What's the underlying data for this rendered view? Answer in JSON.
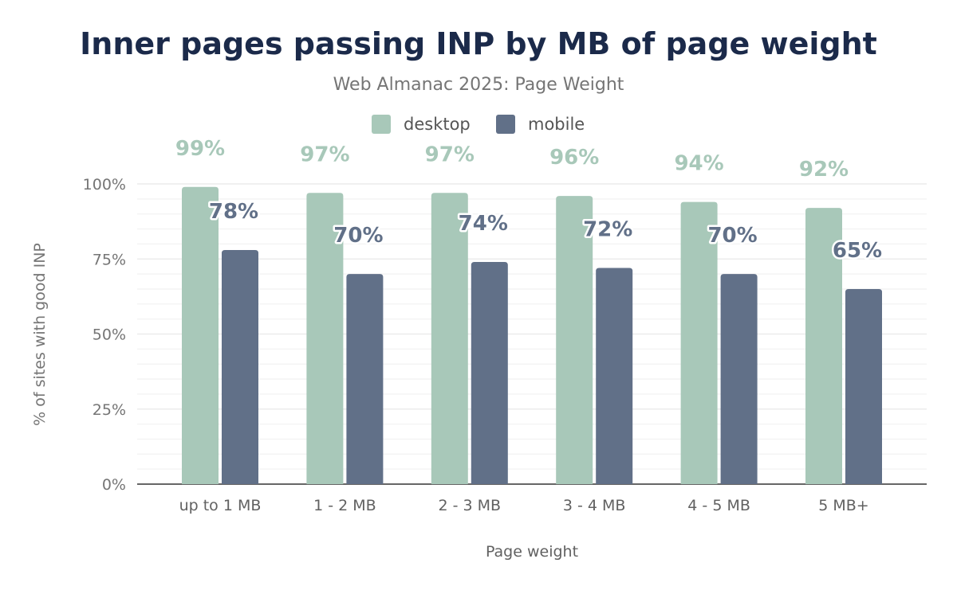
{
  "chart_data": {
    "type": "bar",
    "title": "Inner pages passing INP by MB of page weight",
    "subtitle": "Web Almanac 2025: Page Weight",
    "xlabel": "Page weight",
    "ylabel": "% of sites with good INP",
    "categories": [
      "up to 1 MB",
      "1 - 2 MB",
      "2 - 3 MB",
      "3 - 4 MB",
      "4 - 5 MB",
      "5 MB+"
    ],
    "series": [
      {
        "name": "desktop",
        "color": "#a8c8b9",
        "values": [
          99,
          97,
          97,
          96,
          94,
          92
        ],
        "labels": [
          "99%",
          "97%",
          "97%",
          "96%",
          "94%",
          "92%"
        ]
      },
      {
        "name": "mobile",
        "color": "#617088",
        "values": [
          78,
          70,
          74,
          72,
          70,
          65
        ],
        "labels": [
          "78%",
          "70%",
          "74%",
          "72%",
          "70%",
          "65%"
        ]
      }
    ],
    "ylim": [
      0,
      100
    ],
    "yticks": [
      0,
      25,
      50,
      75,
      100
    ],
    "ytick_labels": [
      "0%",
      "25%",
      "50%",
      "75%",
      "100%"
    ],
    "grid": true,
    "legend": "top-center"
  }
}
